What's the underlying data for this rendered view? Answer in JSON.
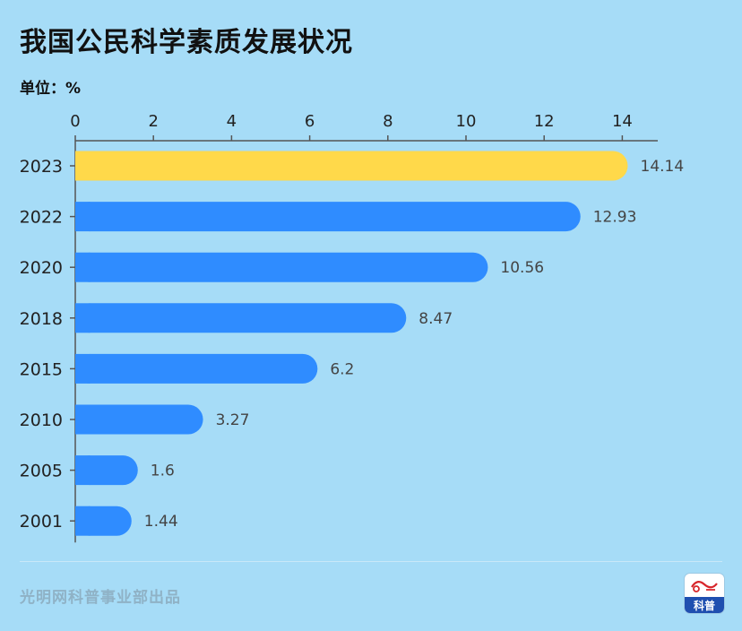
{
  "header": {
    "title": "我国公民科学素质发展状况",
    "unit_label": "单位：%"
  },
  "footer": {
    "credit": "光明网科普事业部出品",
    "logo_label": "科普"
  },
  "colors": {
    "background": "#a6dcf7",
    "bar": "#2f8cff",
    "highlight_bar": "#ffd94a",
    "axis": "#555555"
  },
  "chart_data": {
    "type": "bar",
    "orientation": "horizontal",
    "categories": [
      "2023",
      "2022",
      "2020",
      "2018",
      "2015",
      "2010",
      "2005",
      "2001"
    ],
    "values": [
      14.14,
      12.93,
      10.56,
      8.47,
      6.2,
      3.27,
      1.6,
      1.44
    ],
    "value_labels": [
      "14.14",
      "12.93",
      "10.56",
      "8.47",
      "6.2",
      "3.27",
      "1.6",
      "1.44"
    ],
    "highlight_category": "2023",
    "x_ticks": [
      "0",
      "2",
      "4",
      "6",
      "8",
      "10",
      "12",
      "14"
    ],
    "xlim": [
      0,
      14.9
    ],
    "x_axis_position": "top",
    "grid": false,
    "legend": "none"
  }
}
